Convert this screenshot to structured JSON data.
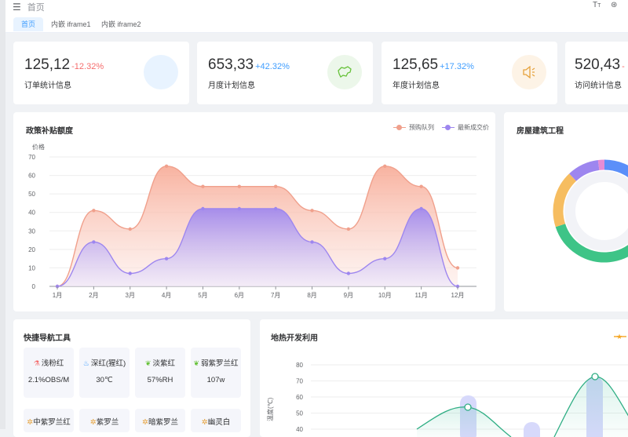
{
  "topbar": {
    "breadcrumb": "首页"
  },
  "tabs": [
    {
      "label": "首页"
    },
    {
      "label": "内嵌 iframe1"
    },
    {
      "label": "内嵌 iframe2"
    }
  ],
  "stats": [
    {
      "value": "125,12",
      "change": "-12.32%",
      "label": "订单统计信息",
      "change_color": "#f56c6c",
      "circle_color": "#e8f3ff",
      "icon": "blank-icon"
    },
    {
      "value": "653,33",
      "change": "+42.32%",
      "label": "月度计划信息",
      "change_color": "#409eff",
      "circle_color": "#ecf7ea",
      "icon": "map-icon"
    },
    {
      "value": "125,65",
      "change": "+17.32%",
      "label": "年度计划信息",
      "change_color": "#409eff",
      "circle_color": "#fdf3e6",
      "icon": "speaker-icon"
    },
    {
      "value": "520,43",
      "change": "-",
      "label": "访问统计信息",
      "change_color": "#f56c6c"
    }
  ],
  "policy_card": {
    "title": "政策补贴额度"
  },
  "building_card": {
    "title": "房屋建筑工程"
  },
  "nav_card": {
    "title": "快捷导航工具",
    "tiles": [
      {
        "name": "浅粉红",
        "value": "2.1%OBS/M",
        "icon_color": "#f56c6c",
        "icon": "beaker-icon"
      },
      {
        "name": "深红(猩红)",
        "value": "30℃",
        "icon_color": "#409eff",
        "icon": "drop-icon"
      },
      {
        "name": "淡紫红",
        "value": "57%RH",
        "icon_color": "#67c23a",
        "icon": "leaf-icon"
      },
      {
        "name": "弱紫罗兰红",
        "value": "107w",
        "icon_color": "#67c23a",
        "icon": "leaf-icon"
      }
    ],
    "tiles_row2": [
      {
        "name": "中紫罗兰红",
        "icon_color": "#e6a23c",
        "icon": "gear-icon"
      },
      {
        "name": "紫罗兰",
        "icon_color": "#e6a23c",
        "icon": "gear-icon"
      },
      {
        "name": "暗紫罗兰",
        "icon_color": "#e6a23c",
        "icon": "gear-icon"
      },
      {
        "name": "幽灵白",
        "icon_color": "#e6a23c",
        "icon": "gear-icon"
      }
    ]
  },
  "geo_card": {
    "title": "地热开发利用"
  },
  "chart_data": [
    {
      "type": "area",
      "title": "政策补贴额度",
      "ylabel": "价格",
      "ylim": [
        0,
        70
      ],
      "yticks": [
        "0",
        "10",
        "20",
        "30",
        "40",
        "50",
        "60",
        "70"
      ],
      "categories": [
        "1月",
        "2月",
        "3月",
        "4月",
        "5月",
        "6月",
        "7月",
        "8月",
        "9月",
        "10月",
        "11月",
        "12月"
      ],
      "series": [
        {
          "name": "预购队列",
          "color": "#f0a08c",
          "values": [
            0,
            41,
            31,
            65,
            54,
            54,
            54,
            41,
            31,
            65,
            54,
            10
          ]
        },
        {
          "name": "最新成交价",
          "color": "#9d86ef",
          "values": [
            0,
            24,
            7,
            15,
            42,
            42,
            42,
            24,
            7,
            15,
            42,
            0
          ]
        }
      ],
      "grid": true,
      "legend": "top-right"
    },
    {
      "type": "pie",
      "title": "房屋建筑工程",
      "series": [
        {
          "color": "#5b8ff9",
          "value": 27
        },
        {
          "color": "#3ec487",
          "value": 43
        },
        {
          "color": "#f6bd60",
          "value": 18
        },
        {
          "color": "#9d86ef",
          "value": 10
        },
        {
          "color": "#e58cd5",
          "value": 2
        }
      ]
    },
    {
      "type": "bar",
      "title": "地热开发利用",
      "yticks": [
        "40",
        "50",
        "60",
        "70",
        "80"
      ],
      "ylim": [
        40,
        80
      ],
      "ylabel": "温度(℃)",
      "legend": "top-right"
    }
  ]
}
